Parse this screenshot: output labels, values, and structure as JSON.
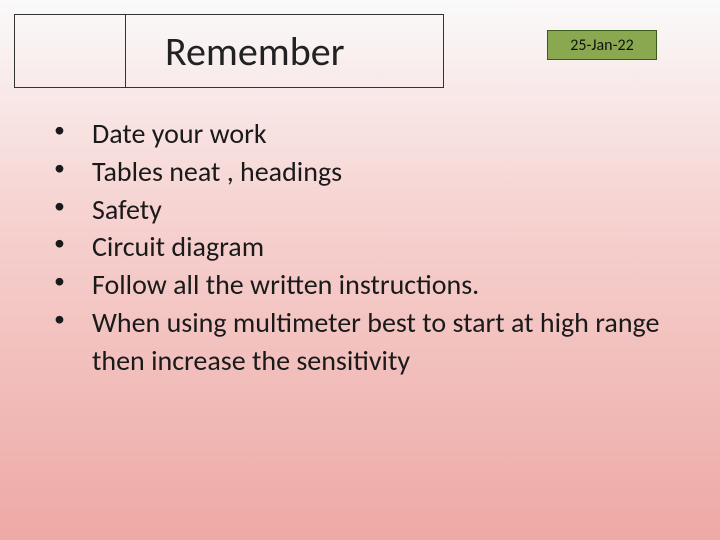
{
  "header": {
    "title": "Remember"
  },
  "date_badge": {
    "text": "25-Jan-22",
    "background_color": "#8aa84f",
    "border_color": "#3a5a1a"
  },
  "bullets": [
    "Date your work",
    "Tables neat , headings",
    "Safety",
    "Circuit diagram",
    "Follow all the written instructions.",
    "When using multimeter  best to start at high range then increase the sensitivity"
  ],
  "style": {
    "background_gradient_top": "#fafafa",
    "background_gradient_mid": "#f6d2d0",
    "background_gradient_bottom": "#eda9a5",
    "title_fontsize": 40,
    "bullet_fontsize": 28,
    "date_fontsize": 16,
    "font_family": "Calibri"
  }
}
